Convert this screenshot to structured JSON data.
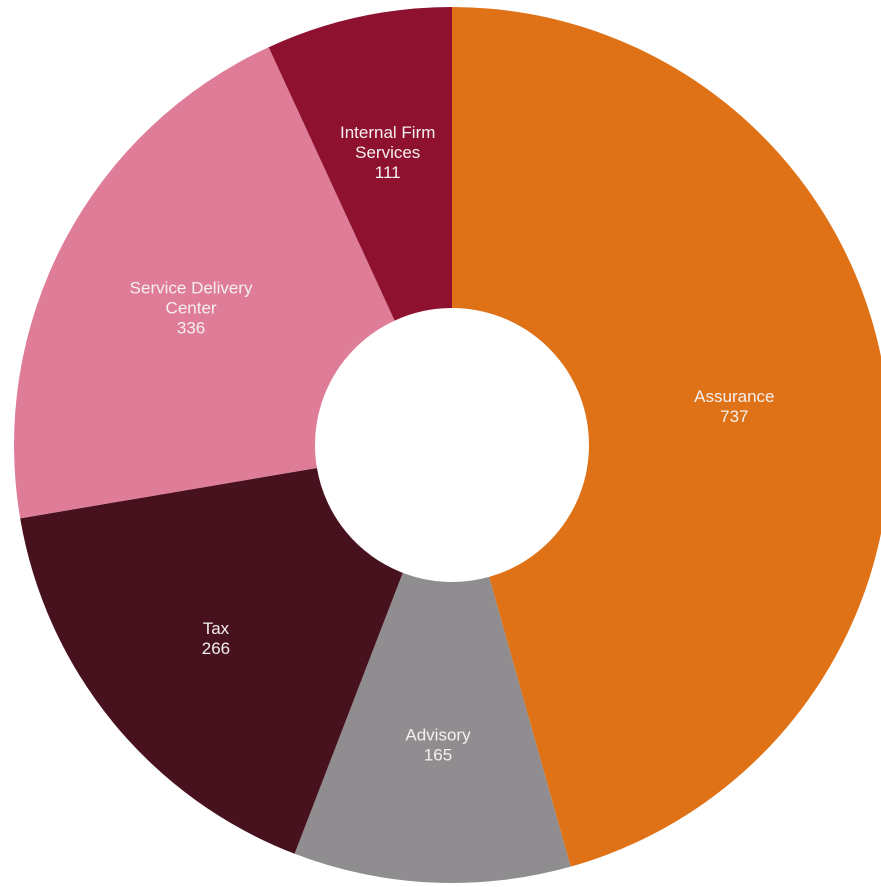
{
  "chart_data": {
    "type": "pie",
    "donut": true,
    "slices": [
      {
        "label": "Assurance",
        "value": 737,
        "color": "#df7216"
      },
      {
        "label": "Advisory",
        "value": 165,
        "color": "#8f8d8f"
      },
      {
        "label": "Tax",
        "value": 266,
        "color": "#48111e"
      },
      {
        "label": "Service Delivery Center",
        "value": 336,
        "color": "#df7c97"
      },
      {
        "label": "Internal Firm Services",
        "value": 111,
        "color": "#8e1230"
      }
    ],
    "start": "12 o'clock",
    "direction": "clockwise",
    "legend": "none"
  }
}
